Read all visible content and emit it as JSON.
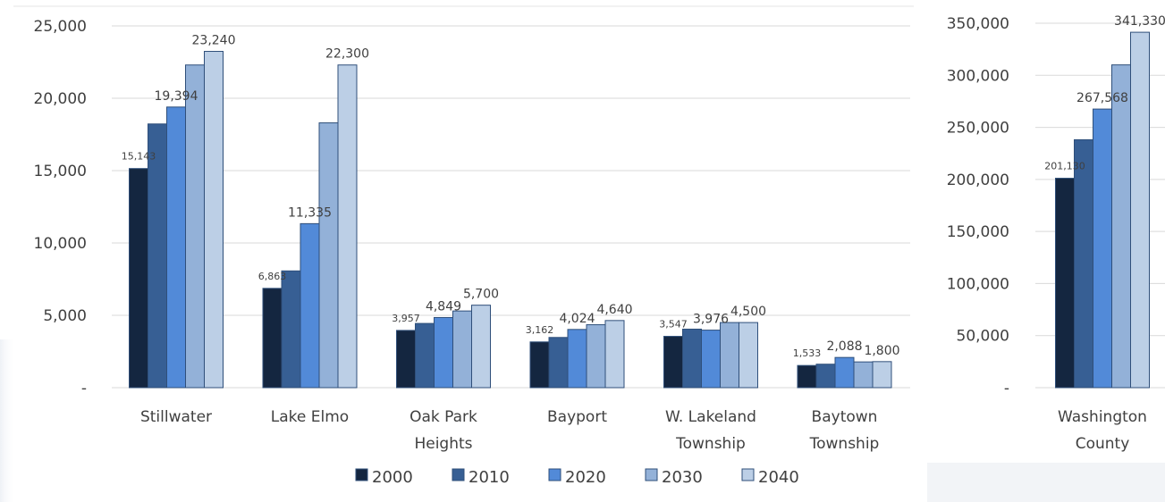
{
  "chart_data": [
    {
      "type": "bar",
      "categories": [
        "Stillwater",
        "Lake Elmo",
        "Oak Park Heights",
        "Bayport",
        "W. Lakeland Township",
        "Baytown Township"
      ],
      "category_lines": [
        [
          "Stillwater"
        ],
        [
          "Lake Elmo"
        ],
        [
          "Oak Park",
          "Heights"
        ],
        [
          "Bayport"
        ],
        [
          "W. Lakeland",
          "Township"
        ],
        [
          "Baytown",
          "Township"
        ]
      ],
      "series": [
        {
          "name": "2000",
          "values": [
            15143,
            6863,
            3957,
            3162,
            3547,
            1533
          ]
        },
        {
          "name": "2010",
          "values": [
            18225,
            8069,
            4439,
            3471,
            4045,
            1623
          ]
        },
        {
          "name": "2020",
          "values": [
            19394,
            11335,
            4849,
            4024,
            3976,
            2088
          ]
        },
        {
          "name": "2030",
          "values": [
            22300,
            18300,
            5300,
            4350,
            4500,
            1780
          ]
        },
        {
          "name": "2040",
          "values": [
            23240,
            22300,
            5700,
            4640,
            4500,
            1800
          ]
        }
      ],
      "data_labels": [
        {
          "category": 0,
          "series": 0,
          "text": "15,143",
          "size": "small"
        },
        {
          "category": 0,
          "series": 2,
          "text": "19,394",
          "size": "normal"
        },
        {
          "category": 0,
          "series": 4,
          "text": "23,240",
          "size": "normal"
        },
        {
          "category": 1,
          "series": 0,
          "text": "6,863",
          "size": "small"
        },
        {
          "category": 1,
          "series": 2,
          "text": "11,335",
          "size": "normal"
        },
        {
          "category": 1,
          "series": 4,
          "text": "22,300",
          "size": "normal"
        },
        {
          "category": 2,
          "series": 0,
          "text": "3,957",
          "size": "small"
        },
        {
          "category": 2,
          "series": 2,
          "text": "4,849",
          "size": "normal"
        },
        {
          "category": 2,
          "series": 4,
          "text": "5,700",
          "size": "normal"
        },
        {
          "category": 3,
          "series": 0,
          "text": "3,162",
          "size": "small"
        },
        {
          "category": 3,
          "series": 2,
          "text": "4,024",
          "size": "normal"
        },
        {
          "category": 3,
          "series": 4,
          "text": "4,640",
          "size": "normal"
        },
        {
          "category": 4,
          "series": 0,
          "text": "3,547",
          "size": "small"
        },
        {
          "category": 4,
          "series": 2,
          "text": "3,976",
          "size": "normal"
        },
        {
          "category": 4,
          "series": 4,
          "text": "4,500",
          "size": "normal"
        },
        {
          "category": 5,
          "series": 0,
          "text": "1,533",
          "size": "small"
        },
        {
          "category": 5,
          "series": 2,
          "text": "2,088",
          "size": "normal"
        },
        {
          "category": 5,
          "series": 4,
          "text": "1,800",
          "size": "normal"
        }
      ],
      "ylim": [
        0,
        25000
      ],
      "yticks": [
        "-",
        "5,000",
        "10,000",
        "15,000",
        "20,000",
        "25,000"
      ],
      "grid": true,
      "legend": "bottom"
    },
    {
      "type": "bar",
      "categories": [
        "Washington County"
      ],
      "category_lines": [
        [
          "Washington",
          "County"
        ]
      ],
      "series": [
        {
          "name": "2000",
          "values": [
            201130
          ]
        },
        {
          "name": "2010",
          "values": [
            238136
          ]
        },
        {
          "name": "2020",
          "values": [
            267568
          ]
        },
        {
          "name": "2030",
          "values": [
            310000
          ]
        },
        {
          "name": "2040",
          "values": [
            341330
          ]
        }
      ],
      "data_labels": [
        {
          "category": 0,
          "series": 0,
          "text": "201,130",
          "size": "small"
        },
        {
          "category": 0,
          "series": 2,
          "text": "267,568",
          "size": "normal"
        },
        {
          "category": 0,
          "series": 4,
          "text": "341,330",
          "size": "normal"
        }
      ],
      "ylim": [
        0,
        350000
      ],
      "yticks": [
        "-",
        "50,000",
        "100,000",
        "150,000",
        "200,000",
        "250,000",
        "300,000",
        "350,000"
      ],
      "grid": true
    }
  ],
  "colors": {
    "2000": "#142640",
    "2010": "#375f94",
    "2020": "#528ad8",
    "2030": "#93b1d8",
    "2040": "#bccfe6",
    "bar_outline": "#2f4f7a",
    "grid": "#d9d9d9",
    "text": "#404040"
  }
}
